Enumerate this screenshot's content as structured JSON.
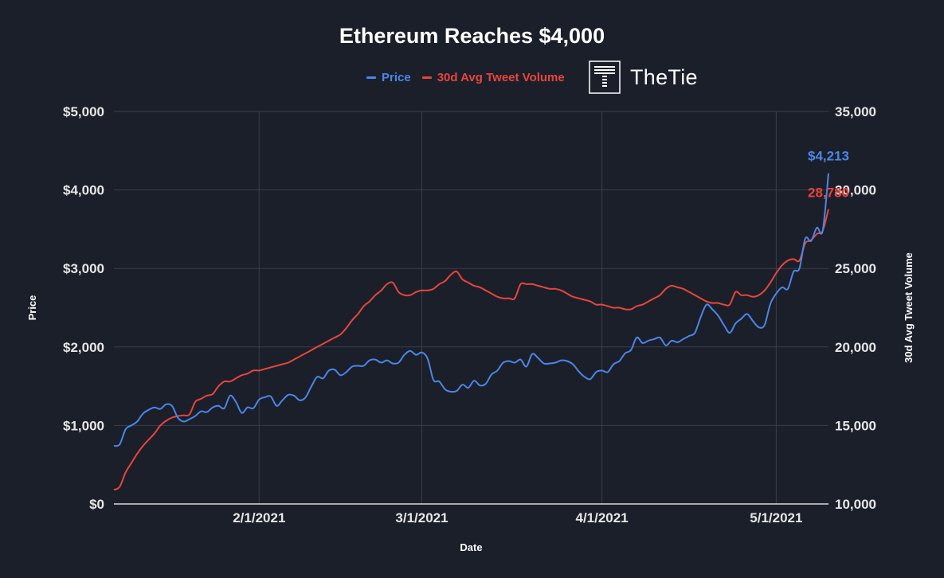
{
  "colors": {
    "background": "#1b1f2a",
    "price": "#4a86e8",
    "tweets": "#e8453c",
    "grid": "#3a3f4b",
    "text": "#ffffff"
  },
  "legend": {
    "price_label": "Price",
    "tweets_label": "30d Avg Tweet Volume"
  },
  "logo": {
    "icon": "thetie-logo-icon",
    "text": "TheTie"
  },
  "chart_data": {
    "type": "line",
    "title": "Ethereum Reaches $4,000",
    "xlabel": "Date",
    "ylabel_left": "Price",
    "ylabel_right": "30d Avg Tweet Volume",
    "x_range": [
      "2021-01-07",
      "2021-05-10"
    ],
    "x_ticks": [
      {
        "date": "2021-02-01",
        "label": "2/1/2021"
      },
      {
        "date": "2021-03-01",
        "label": "3/1/2021"
      },
      {
        "date": "2021-04-01",
        "label": "4/1/2021"
      },
      {
        "date": "2021-05-01",
        "label": "5/1/2021"
      }
    ],
    "y_left": {
      "min": 0,
      "max": 5000,
      "ticks": [
        {
          "value": 0,
          "label": "$0"
        },
        {
          "value": 1000,
          "label": "$1,000"
        },
        {
          "value": 2000,
          "label": "$2,000"
        },
        {
          "value": 3000,
          "label": "$3,000"
        },
        {
          "value": 4000,
          "label": "$4,000"
        },
        {
          "value": 5000,
          "label": "$5,000"
        }
      ]
    },
    "y_right": {
      "min": 10000,
      "max": 35000,
      "ticks": [
        {
          "value": 10000,
          "label": "10,000"
        },
        {
          "value": 15000,
          "label": "15,000"
        },
        {
          "value": 20000,
          "label": "20,000"
        },
        {
          "value": 25000,
          "label": "25,000"
        },
        {
          "value": 30000,
          "label": "30,000"
        },
        {
          "value": 35000,
          "label": "35,000"
        }
      ]
    },
    "grid": true,
    "series": [
      {
        "name": "Price",
        "axis": "left",
        "end_label": "$4,213",
        "points": [
          [
            "2021-01-07",
            740
          ],
          [
            "2021-01-08",
            760
          ],
          [
            "2021-01-09",
            950
          ],
          [
            "2021-01-10",
            1000
          ],
          [
            "2021-01-11",
            1050
          ],
          [
            "2021-01-12",
            1150
          ],
          [
            "2021-01-13",
            1200
          ],
          [
            "2021-01-14",
            1230
          ],
          [
            "2021-01-15",
            1210
          ],
          [
            "2021-01-16",
            1270
          ],
          [
            "2021-01-17",
            1250
          ],
          [
            "2021-01-18",
            1100
          ],
          [
            "2021-01-19",
            1050
          ],
          [
            "2021-01-20",
            1080
          ],
          [
            "2021-01-21",
            1120
          ],
          [
            "2021-01-22",
            1180
          ],
          [
            "2021-01-23",
            1170
          ],
          [
            "2021-01-24",
            1230
          ],
          [
            "2021-01-25",
            1250
          ],
          [
            "2021-01-26",
            1220
          ],
          [
            "2021-01-27",
            1380
          ],
          [
            "2021-01-28",
            1300
          ],
          [
            "2021-01-29",
            1160
          ],
          [
            "2021-01-30",
            1230
          ],
          [
            "2021-01-31",
            1220
          ],
          [
            "2021-02-01",
            1330
          ],
          [
            "2021-02-02",
            1360
          ],
          [
            "2021-02-03",
            1370
          ],
          [
            "2021-02-04",
            1250
          ],
          [
            "2021-02-05",
            1320
          ],
          [
            "2021-02-06",
            1390
          ],
          [
            "2021-02-07",
            1380
          ],
          [
            "2021-02-08",
            1320
          ],
          [
            "2021-02-09",
            1360
          ],
          [
            "2021-02-10",
            1500
          ],
          [
            "2021-02-11",
            1620
          ],
          [
            "2021-02-12",
            1600
          ],
          [
            "2021-02-13",
            1700
          ],
          [
            "2021-02-14",
            1710
          ],
          [
            "2021-02-15",
            1640
          ],
          [
            "2021-02-16",
            1680
          ],
          [
            "2021-02-17",
            1750
          ],
          [
            "2021-02-18",
            1760
          ],
          [
            "2021-02-19",
            1760
          ],
          [
            "2021-02-20",
            1830
          ],
          [
            "2021-02-21",
            1840
          ],
          [
            "2021-02-22",
            1800
          ],
          [
            "2021-02-23",
            1830
          ],
          [
            "2021-02-24",
            1790
          ],
          [
            "2021-02-25",
            1800
          ],
          [
            "2021-02-26",
            1900
          ],
          [
            "2021-02-27",
            1950
          ],
          [
            "2021-02-28",
            1900
          ],
          [
            "2021-03-01",
            1930
          ],
          [
            "2021-03-02",
            1850
          ],
          [
            "2021-03-03",
            1580
          ],
          [
            "2021-03-04",
            1560
          ],
          [
            "2021-03-05",
            1460
          ],
          [
            "2021-03-06",
            1430
          ],
          [
            "2021-03-07",
            1440
          ],
          [
            "2021-03-08",
            1520
          ],
          [
            "2021-03-09",
            1480
          ],
          [
            "2021-03-10",
            1570
          ],
          [
            "2021-03-11",
            1510
          ],
          [
            "2021-03-12",
            1530
          ],
          [
            "2021-03-13",
            1650
          ],
          [
            "2021-03-14",
            1700
          ],
          [
            "2021-03-15",
            1800
          ],
          [
            "2021-03-16",
            1820
          ],
          [
            "2021-03-17",
            1800
          ],
          [
            "2021-03-18",
            1840
          ],
          [
            "2021-03-19",
            1750
          ],
          [
            "2021-03-20",
            1910
          ],
          [
            "2021-03-21",
            1860
          ],
          [
            "2021-03-22",
            1790
          ],
          [
            "2021-03-23",
            1790
          ],
          [
            "2021-03-24",
            1800
          ],
          [
            "2021-03-25",
            1830
          ],
          [
            "2021-03-26",
            1820
          ],
          [
            "2021-03-27",
            1780
          ],
          [
            "2021-03-28",
            1690
          ],
          [
            "2021-03-29",
            1620
          ],
          [
            "2021-03-30",
            1590
          ],
          [
            "2021-03-31",
            1680
          ],
          [
            "2021-04-01",
            1700
          ],
          [
            "2021-04-02",
            1680
          ],
          [
            "2021-04-03",
            1780
          ],
          [
            "2021-04-04",
            1820
          ],
          [
            "2021-04-05",
            1920
          ],
          [
            "2021-04-06",
            1960
          ],
          [
            "2021-04-07",
            2120
          ],
          [
            "2021-04-08",
            2050
          ],
          [
            "2021-04-09",
            2080
          ],
          [
            "2021-04-10",
            2100
          ],
          [
            "2021-04-11",
            2120
          ],
          [
            "2021-04-12",
            2020
          ],
          [
            "2021-04-13",
            2080
          ],
          [
            "2021-04-14",
            2060
          ],
          [
            "2021-04-15",
            2100
          ],
          [
            "2021-04-16",
            2140
          ],
          [
            "2021-04-17",
            2180
          ],
          [
            "2021-04-18",
            2380
          ],
          [
            "2021-04-19",
            2540
          ],
          [
            "2021-04-20",
            2480
          ],
          [
            "2021-04-21",
            2400
          ],
          [
            "2021-04-22",
            2280
          ],
          [
            "2021-04-23",
            2180
          ],
          [
            "2021-04-24",
            2300
          ],
          [
            "2021-04-25",
            2360
          ],
          [
            "2021-04-26",
            2420
          ],
          [
            "2021-04-27",
            2330
          ],
          [
            "2021-04-28",
            2250
          ],
          [
            "2021-04-29",
            2280
          ],
          [
            "2021-04-30",
            2550
          ],
          [
            "2021-05-01",
            2680
          ],
          [
            "2021-05-02",
            2760
          ],
          [
            "2021-05-03",
            2740
          ],
          [
            "2021-05-04",
            2960
          ],
          [
            "2021-05-05",
            3000
          ],
          [
            "2021-05-06",
            3380
          ],
          [
            "2021-05-07",
            3350
          ],
          [
            "2021-05-08",
            3520
          ],
          [
            "2021-05-09",
            3480
          ],
          [
            "2021-05-10",
            4213
          ]
        ]
      },
      {
        "name": "30d Avg Tweet Volume",
        "axis": "right",
        "end_label": "28,780",
        "points": [
          [
            "2021-01-07",
            10900
          ],
          [
            "2021-01-08",
            11100
          ],
          [
            "2021-01-09",
            12000
          ],
          [
            "2021-01-10",
            12600
          ],
          [
            "2021-01-11",
            13200
          ],
          [
            "2021-01-12",
            13700
          ],
          [
            "2021-01-13",
            14100
          ],
          [
            "2021-01-14",
            14500
          ],
          [
            "2021-01-15",
            15000
          ],
          [
            "2021-01-16",
            15300
          ],
          [
            "2021-01-17",
            15500
          ],
          [
            "2021-01-18",
            15600
          ],
          [
            "2021-01-19",
            15650
          ],
          [
            "2021-01-20",
            15700
          ],
          [
            "2021-01-21",
            16500
          ],
          [
            "2021-01-22",
            16700
          ],
          [
            "2021-01-23",
            16900
          ],
          [
            "2021-01-24",
            17000
          ],
          [
            "2021-01-25",
            17500
          ],
          [
            "2021-01-26",
            17800
          ],
          [
            "2021-01-27",
            17800
          ],
          [
            "2021-01-28",
            18000
          ],
          [
            "2021-01-29",
            18200
          ],
          [
            "2021-01-30",
            18300
          ],
          [
            "2021-01-31",
            18500
          ],
          [
            "2021-02-01",
            18500
          ],
          [
            "2021-02-02",
            18600
          ],
          [
            "2021-02-03",
            18700
          ],
          [
            "2021-02-04",
            18800
          ],
          [
            "2021-02-05",
            18900
          ],
          [
            "2021-02-06",
            19000
          ],
          [
            "2021-02-07",
            19200
          ],
          [
            "2021-02-08",
            19400
          ],
          [
            "2021-02-09",
            19600
          ],
          [
            "2021-02-10",
            19800
          ],
          [
            "2021-02-11",
            20000
          ],
          [
            "2021-02-12",
            20200
          ],
          [
            "2021-02-13",
            20400
          ],
          [
            "2021-02-14",
            20600
          ],
          [
            "2021-02-15",
            20800
          ],
          [
            "2021-02-16",
            21200
          ],
          [
            "2021-02-17",
            21700
          ],
          [
            "2021-02-18",
            22100
          ],
          [
            "2021-02-19",
            22600
          ],
          [
            "2021-02-20",
            22900
          ],
          [
            "2021-02-21",
            23300
          ],
          [
            "2021-02-22",
            23600
          ],
          [
            "2021-02-23",
            24000
          ],
          [
            "2021-02-24",
            24100
          ],
          [
            "2021-02-25",
            23500
          ],
          [
            "2021-02-26",
            23300
          ],
          [
            "2021-02-27",
            23300
          ],
          [
            "2021-02-28",
            23500
          ],
          [
            "2021-03-01",
            23600
          ],
          [
            "2021-03-02",
            23600
          ],
          [
            "2021-03-03",
            23700
          ],
          [
            "2021-03-04",
            24000
          ],
          [
            "2021-03-05",
            24200
          ],
          [
            "2021-03-06",
            24600
          ],
          [
            "2021-03-07",
            24800
          ],
          [
            "2021-03-08",
            24300
          ],
          [
            "2021-03-09",
            24100
          ],
          [
            "2021-03-10",
            23900
          ],
          [
            "2021-03-11",
            23800
          ],
          [
            "2021-03-12",
            23600
          ],
          [
            "2021-03-13",
            23400
          ],
          [
            "2021-03-14",
            23200
          ],
          [
            "2021-03-15",
            23100
          ],
          [
            "2021-03-16",
            23100
          ],
          [
            "2021-03-17",
            23100
          ],
          [
            "2021-03-18",
            24000
          ],
          [
            "2021-03-19",
            24000
          ],
          [
            "2021-03-20",
            24000
          ],
          [
            "2021-03-21",
            23900
          ],
          [
            "2021-03-22",
            23800
          ],
          [
            "2021-03-23",
            23700
          ],
          [
            "2021-03-24",
            23700
          ],
          [
            "2021-03-25",
            23600
          ],
          [
            "2021-03-26",
            23400
          ],
          [
            "2021-03-27",
            23200
          ],
          [
            "2021-03-28",
            23100
          ],
          [
            "2021-03-29",
            23000
          ],
          [
            "2021-03-30",
            22900
          ],
          [
            "2021-03-31",
            22700
          ],
          [
            "2021-04-01",
            22700
          ],
          [
            "2021-04-02",
            22600
          ],
          [
            "2021-04-03",
            22500
          ],
          [
            "2021-04-04",
            22500
          ],
          [
            "2021-04-05",
            22400
          ],
          [
            "2021-04-06",
            22400
          ],
          [
            "2021-04-07",
            22600
          ],
          [
            "2021-04-08",
            22700
          ],
          [
            "2021-04-09",
            22900
          ],
          [
            "2021-04-10",
            23100
          ],
          [
            "2021-04-11",
            23300
          ],
          [
            "2021-04-12",
            23700
          ],
          [
            "2021-04-13",
            23900
          ],
          [
            "2021-04-14",
            23800
          ],
          [
            "2021-04-15",
            23700
          ],
          [
            "2021-04-16",
            23500
          ],
          [
            "2021-04-17",
            23300
          ],
          [
            "2021-04-18",
            23100
          ],
          [
            "2021-04-19",
            22900
          ],
          [
            "2021-04-20",
            22800
          ],
          [
            "2021-04-21",
            22800
          ],
          [
            "2021-04-22",
            22700
          ],
          [
            "2021-04-23",
            22700
          ],
          [
            "2021-04-24",
            23500
          ],
          [
            "2021-04-25",
            23300
          ],
          [
            "2021-04-26",
            23300
          ],
          [
            "2021-04-27",
            23200
          ],
          [
            "2021-04-28",
            23300
          ],
          [
            "2021-04-29",
            23600
          ],
          [
            "2021-04-30",
            24100
          ],
          [
            "2021-05-01",
            24700
          ],
          [
            "2021-05-02",
            25200
          ],
          [
            "2021-05-03",
            25500
          ],
          [
            "2021-05-04",
            25600
          ],
          [
            "2021-05-05",
            25500
          ],
          [
            "2021-05-06",
            26600
          ],
          [
            "2021-05-07",
            26800
          ],
          [
            "2021-05-08",
            27200
          ],
          [
            "2021-05-09",
            27400
          ],
          [
            "2021-05-10",
            28780
          ]
        ]
      }
    ]
  }
}
